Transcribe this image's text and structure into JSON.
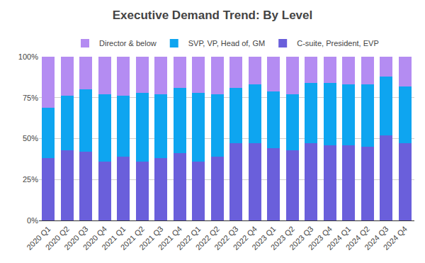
{
  "chart_data": {
    "type": "bar",
    "title": "Executive Demand Trend: By Level",
    "stacked": true,
    "grid": true,
    "legend": "top",
    "categories": [
      "2020 Q1",
      "2020 Q2",
      "2020 Q3",
      "2020 Q4",
      "2021 Q1",
      "2021 Q2",
      "2021 Q3",
      "2021 Q4",
      "2022 Q1",
      "2022 Q2",
      "2022 Q3",
      "2022 Q4",
      "2023 Q1",
      "2023 Q2",
      "2023 Q3",
      "2023 Q4",
      "2024 Q1",
      "2024 Q2",
      "2024 Q3",
      "2024 Q4"
    ],
    "series": [
      {
        "name": "C-suite, President, EVP",
        "color": "#6a5fdb",
        "values": [
          38,
          43,
          42,
          36,
          39,
          36,
          38,
          41,
          36,
          39,
          47,
          47,
          44,
          43,
          47,
          46,
          46,
          45,
          52,
          47
        ]
      },
      {
        "name": "SVP, VP, Head of, GM",
        "color": "#0ea5f0",
        "values": [
          31,
          33,
          38,
          41,
          37,
          42,
          39,
          40,
          42,
          38,
          34,
          36,
          35,
          34,
          37,
          38,
          37,
          38,
          36,
          35
        ]
      },
      {
        "name": "Director & below",
        "color": "#b48cf2",
        "values": [
          31,
          24,
          20,
          23,
          24,
          22,
          23,
          19,
          22,
          23,
          19,
          17,
          21,
          23,
          16,
          16,
          17,
          17,
          12,
          18
        ]
      }
    ],
    "ylim": [
      0,
      100
    ],
    "yticks": [
      {
        "value": 0,
        "label": "0%"
      },
      {
        "value": 25,
        "label": "25%"
      },
      {
        "value": 50,
        "label": "50%"
      },
      {
        "value": 75,
        "label": "75%"
      },
      {
        "value": 100,
        "label": "100%"
      }
    ]
  }
}
